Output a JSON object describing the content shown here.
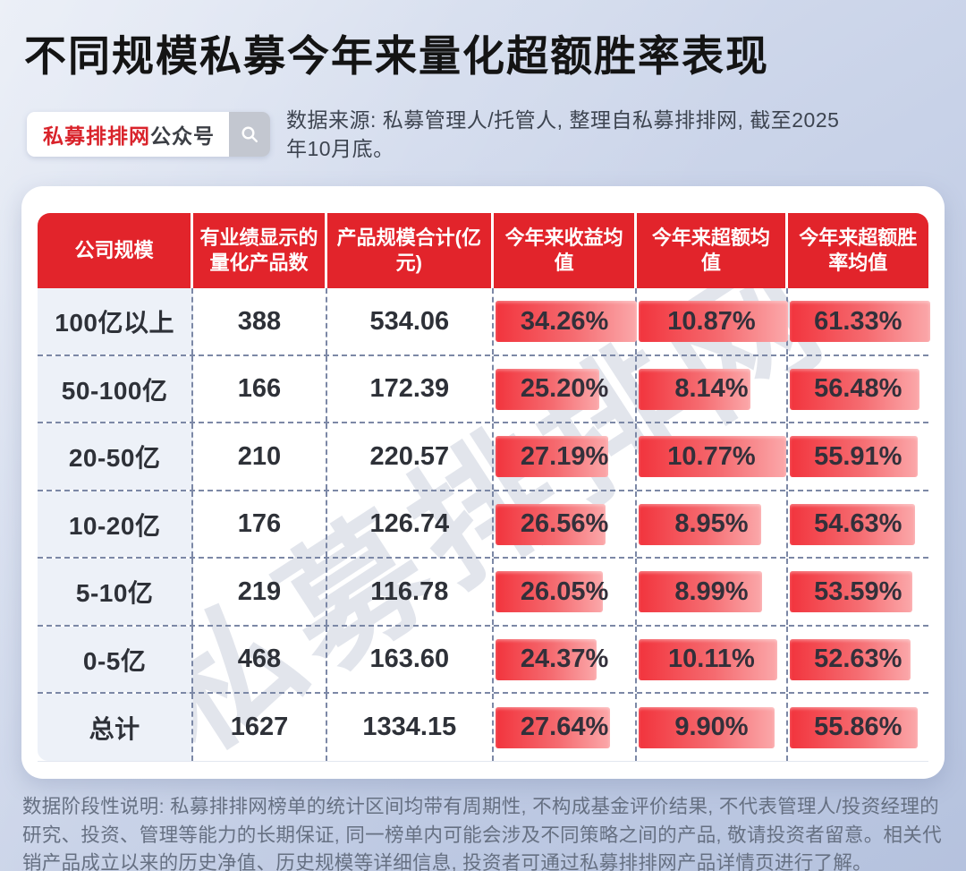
{
  "header": {
    "title": "不同规模私募今年来量化超额胜率表现",
    "badge": {
      "brand": "私募排排网",
      "suffix": "公众号",
      "icon": "search-icon"
    },
    "source": "数据来源: 私募管理人/托管人, 整理自私募排排网, 截至2025年10月底。"
  },
  "watermark": {
    "text": "私募排排网"
  },
  "table": {
    "headers": [
      "公司规模",
      "有业绩显示的量化产品数",
      "产品规模合计(亿元)",
      "今年来收益均值",
      "今年来超额均值",
      "今年来超额胜率均值"
    ],
    "rows": [
      {
        "scale": "100亿以上",
        "count": "388",
        "aum": "534.06",
        "yield": "34.26%",
        "excess": "10.87%",
        "winrate": "61.33%"
      },
      {
        "scale": "50-100亿",
        "count": "166",
        "aum": "172.39",
        "yield": "25.20%",
        "excess": "8.14%",
        "winrate": "56.48%"
      },
      {
        "scale": "20-50亿",
        "count": "210",
        "aum": "220.57",
        "yield": "27.19%",
        "excess": "10.77%",
        "winrate": "55.91%"
      },
      {
        "scale": "10-20亿",
        "count": "176",
        "aum": "126.74",
        "yield": "26.56%",
        "excess": "8.95%",
        "winrate": "54.63%"
      },
      {
        "scale": "5-10亿",
        "count": "219",
        "aum": "116.78",
        "yield": "26.05%",
        "excess": "8.99%",
        "winrate": "53.59%"
      },
      {
        "scale": "0-5亿",
        "count": "468",
        "aum": "163.60",
        "yield": "24.37%",
        "excess": "10.11%",
        "winrate": "52.63%"
      },
      {
        "scale": "总计",
        "count": "1627",
        "aum": "1334.15",
        "yield": "27.64%",
        "excess": "9.90%",
        "winrate": "55.86%"
      }
    ]
  },
  "chart_data": {
    "type": "table",
    "title": "不同规模私募今年来量化超额胜率表现",
    "columns": [
      "公司规模",
      "有业绩显示的量化产品数",
      "产品规模合计(亿元)",
      "今年来收益均值",
      "今年来超额均值",
      "今年来超额胜率均值"
    ],
    "rows": [
      [
        "100亿以上",
        388,
        534.06,
        34.26,
        10.87,
        61.33
      ],
      [
        "50-100亿",
        166,
        172.39,
        25.2,
        8.14,
        56.48
      ],
      [
        "20-50亿",
        210,
        220.57,
        27.19,
        10.77,
        55.91
      ],
      [
        "10-20亿",
        176,
        126.74,
        26.56,
        8.95,
        54.63
      ],
      [
        "5-10亿",
        219,
        116.78,
        26.05,
        8.99,
        53.59
      ],
      [
        "0-5亿",
        468,
        163.6,
        24.37,
        10.11,
        52.63
      ],
      [
        "总计",
        1627,
        1334.15,
        27.64,
        9.9,
        55.86
      ]
    ],
    "units": {
      "产品规模合计": "亿元",
      "今年来收益均值": "%",
      "今年来超额均值": "%",
      "今年来超额胜率均值": "%"
    },
    "databar_columns": [
      "今年来收益均值",
      "今年来超额均值",
      "今年来超额胜率均值"
    ],
    "databar_rule": "bar width proportional to value / column max"
  },
  "footer": {
    "disclaimer": "数据阶段性说明: 私募排排网榜单的统计区间均带有周期性, 不构成基金评价结果, 不代表管理人/投资经理的研究、投资、管理等能力的长期保证, 同一榜单内可能会涉及不同策略之间的产品, 敬请投资者留意。相关代销产品成立以来的历史净值、历史规模等详细信息, 投资者可通过私募排排网产品详情页进行了解。"
  },
  "colors": {
    "header_red": "#e2242b",
    "brand_red": "#d9232b",
    "bar_gradient_start": "#f2343d",
    "bar_gradient_mid": "#f56b70",
    "bar_gradient_end": "#fba8aa",
    "first_col_bg": "#edf1f8",
    "dash_border": "#7c88a6",
    "page_bg_top": "#dce3f1",
    "page_bg_bottom": "#b5c2de",
    "title_text": "#141414",
    "body_text": "#2e3138",
    "muted_text": "#667082"
  }
}
